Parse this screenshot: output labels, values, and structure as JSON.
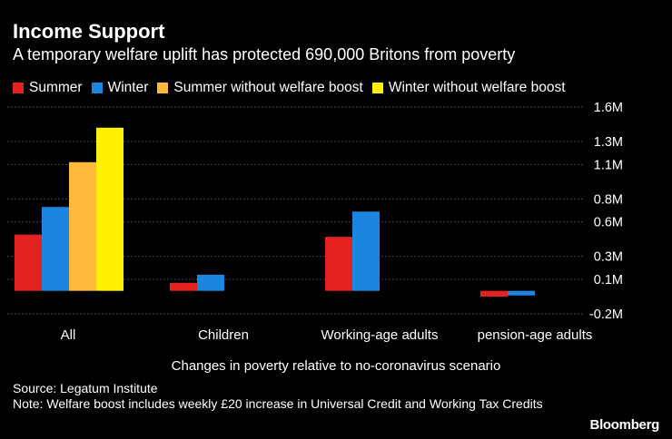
{
  "header": {
    "title": "Income Support",
    "subtitle": "A temporary welfare uplift has protected 690,000 Britons from poverty"
  },
  "footer": {
    "source": "Source: Legatum Institute",
    "note": "Note: Welfare boost includes weekly £20 increase in Universal Credit and Working Tax Credits",
    "logo": "Bloomberg"
  },
  "chart_data": {
    "type": "bar",
    "categories": [
      "All",
      "Children",
      "Working-age adults",
      "pension-age adults"
    ],
    "series": [
      {
        "name": "Summer",
        "color": "#e3221f",
        "values": [
          0.49,
          0.07,
          0.47,
          -0.05
        ]
      },
      {
        "name": "Winter",
        "color": "#1a86df",
        "values": [
          0.73,
          0.14,
          0.69,
          -0.04
        ]
      },
      {
        "name": "Summer without welfare boost",
        "color": "#fdb93a",
        "values": [
          1.12,
          null,
          null,
          null
        ]
      },
      {
        "name": "Winter without welfare boost",
        "color": "#fff200",
        "values": [
          1.42,
          null,
          null,
          null
        ]
      }
    ],
    "title": "",
    "xlabel": "Changes in poverty relative to no-coronavirus scenario",
    "ylabel": "",
    "yticks": [
      1.6,
      1.3,
      1.1,
      0.8,
      0.6,
      0.3,
      0.1,
      -0.2
    ],
    "ytick_labels": [
      "1.6M",
      "1.3M",
      "1.1M",
      "0.8M",
      "0.6M",
      "0.3M",
      "0.1M",
      "-0.2M"
    ],
    "ylim": [
      -0.2,
      1.6
    ],
    "grid": true,
    "legend_position": "top"
  }
}
